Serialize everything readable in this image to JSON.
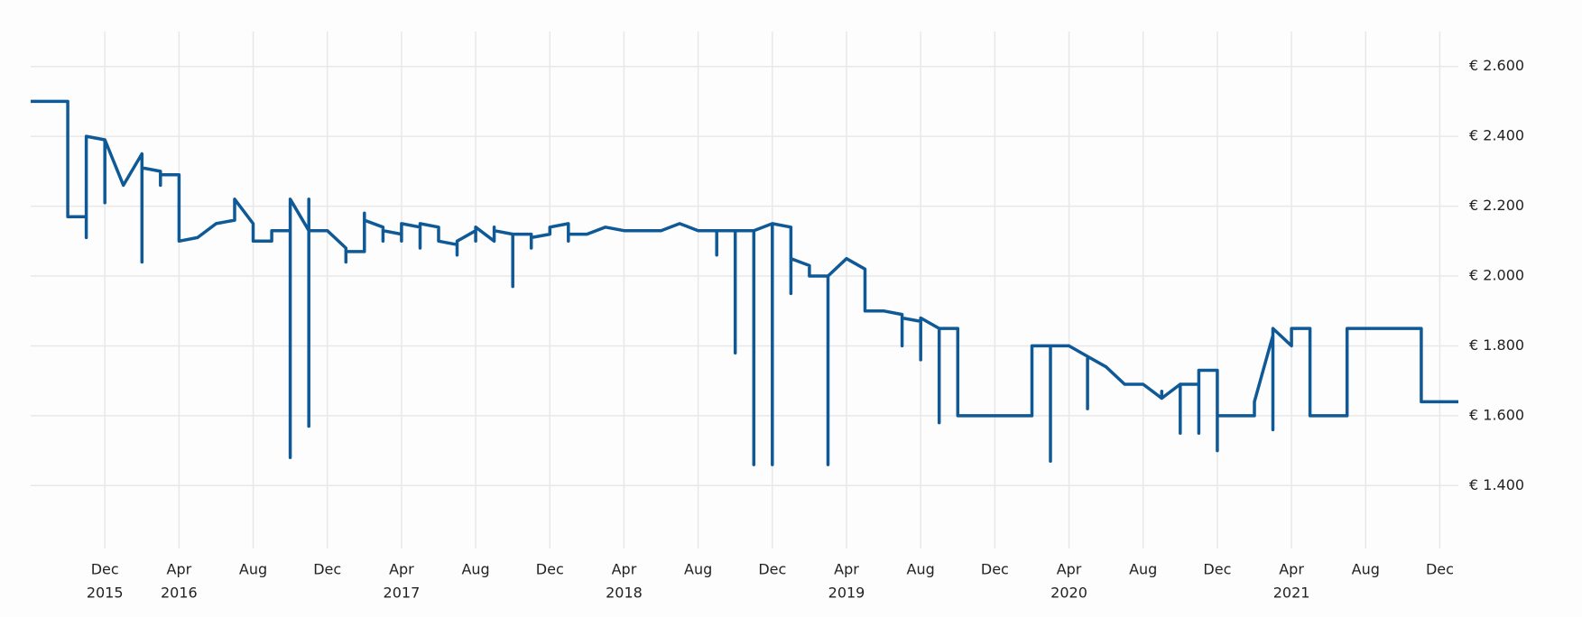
{
  "chart_data": {
    "type": "line",
    "color": "#0f5a96",
    "grid": true,
    "y_axis_side": "right",
    "x": [
      "2015-08",
      "2015-10",
      "2015-10",
      "2015-11",
      "2015-11",
      "2015-11",
      "2015-12",
      "2015-12",
      "2015-12",
      "2016-01",
      "2016-02",
      "2016-02",
      "2016-02",
      "2016-02",
      "2016-02",
      "2016-03",
      "2016-03",
      "2016-03",
      "2016-04",
      "2016-04",
      "2016-05",
      "2016-06",
      "2016-07",
      "2016-07",
      "2016-07",
      "2016-08",
      "2016-08",
      "2016-09",
      "2016-09",
      "2016-10",
      "2016-10",
      "2016-10",
      "2016-10",
      "2016-10",
      "2016-11",
      "2016-11",
      "2016-11",
      "2016-11",
      "2016-11",
      "2016-12",
      "2017-01",
      "2017-01",
      "2017-01",
      "2017-02",
      "2017-02",
      "2017-02",
      "2017-02",
      "2017-03",
      "2017-03",
      "2017-03",
      "2017-04",
      "2017-04",
      "2017-04",
      "2017-05",
      "2017-05",
      "2017-05",
      "2017-06",
      "2017-06",
      "2017-07",
      "2017-07",
      "2017-07",
      "2017-08",
      "2017-08",
      "2017-08",
      "2017-08",
      "2017-08",
      "2017-09",
      "2017-09",
      "2017-09",
      "2017-09",
      "2017-10",
      "2017-10",
      "2017-10",
      "2017-11",
      "2017-11",
      "2017-11",
      "2017-12",
      "2017-12",
      "2018-01",
      "2018-01",
      "2018-01",
      "2018-02",
      "2018-03",
      "2018-04",
      "2018-06",
      "2018-07",
      "2018-08",
      "2018-09",
      "2018-09",
      "2018-09",
      "2018-10",
      "2018-10",
      "2018-10",
      "2018-11",
      "2018-11",
      "2018-11",
      "2018-12",
      "2018-12",
      "2018-12",
      "2019-01",
      "2019-01",
      "2019-01",
      "2019-02",
      "2019-02",
      "2019-03",
      "2019-03",
      "2019-03",
      "2019-04",
      "2019-05",
      "2019-05",
      "2019-06",
      "2019-07",
      "2019-07",
      "2019-07",
      "2019-08",
      "2019-08",
      "2019-08",
      "2019-09",
      "2019-09",
      "2019-09",
      "2019-10",
      "2019-10",
      "2019-10",
      "2019-10",
      "2020-01",
      "2020-02",
      "2020-02",
      "2020-03",
      "2020-03",
      "2020-03",
      "2020-04",
      "2020-05",
      "2020-05",
      "2020-05",
      "2020-06",
      "2020-07",
      "2020-08",
      "2020-09",
      "2020-09",
      "2020-09",
      "2020-10",
      "2020-10",
      "2020-10",
      "2020-11",
      "2020-11",
      "2020-11",
      "2020-11",
      "2020-12",
      "2020-12",
      "2020-12",
      "2021-02",
      "2021-02",
      "2021-03",
      "2021-03",
      "2021-03",
      "2021-03",
      "2021-04",
      "2021-04",
      "2021-05",
      "2021-05",
      "2021-05",
      "2021-07",
      "2021-07",
      "2021-07",
      "2021-07",
      "2021-11",
      "2021-11",
      "2022-01"
    ],
    "values": [
      2500,
      2500,
      2170,
      2170,
      2110,
      2400,
      2390,
      2210,
      2390,
      2260,
      2350,
      2040,
      2320,
      2040,
      2310,
      2300,
      2260,
      2290,
      2290,
      2100,
      2110,
      2150,
      2160,
      2200,
      2220,
      2150,
      2100,
      2100,
      2130,
      2130,
      1480,
      2130,
      1480,
      2220,
      2130,
      2220,
      2130,
      1570,
      2130,
      2130,
      2080,
      2040,
      2070,
      2070,
      2180,
      2110,
      2160,
      2140,
      2100,
      2130,
      2120,
      2100,
      2150,
      2140,
      2080,
      2150,
      2140,
      2100,
      2090,
      2060,
      2100,
      2130,
      2100,
      2140,
      2100,
      2140,
      2100,
      2140,
      2100,
      2130,
      2120,
      1970,
      2120,
      2120,
      2080,
      2110,
      2120,
      2140,
      2150,
      2100,
      2120,
      2120,
      2140,
      2130,
      2130,
      2150,
      2130,
      2130,
      2060,
      2130,
      2130,
      1780,
      2130,
      2130,
      1460,
      2130,
      2150,
      1460,
      2150,
      2140,
      1950,
      2050,
      2030,
      2000,
      2000,
      1460,
      2000,
      2050,
      2020,
      1900,
      1900,
      1890,
      1800,
      1880,
      1870,
      1760,
      1880,
      1850,
      1580,
      1850,
      1850,
      1650,
      1820,
      1600,
      1600,
      1600,
      1800,
      1800,
      1470,
      1800,
      1800,
      1770,
      1620,
      1770,
      1740,
      1690,
      1690,
      1650,
      1670,
      1650,
      1690,
      1550,
      1690,
      1690,
      1550,
      1600,
      1730,
      1730,
      1500,
      1600,
      1600,
      1640,
      1830,
      1850,
      1560,
      1850,
      1800,
      1850,
      1850,
      1710,
      1600,
      1600,
      1850,
      1600,
      1850,
      1850,
      1640,
      1640
    ],
    "xlim": [
      "2015-08",
      "2022-01"
    ],
    "xticks": [
      {
        "value": "2015-12",
        "label": "Dec"
      },
      {
        "value": "2016-04",
        "label": "Apr"
      },
      {
        "value": "2016-08",
        "label": "Aug"
      },
      {
        "value": "2016-12",
        "label": "Dec"
      },
      {
        "value": "2017-04",
        "label": "Apr"
      },
      {
        "value": "2017-08",
        "label": "Aug"
      },
      {
        "value": "2017-12",
        "label": "Dec"
      },
      {
        "value": "2018-04",
        "label": "Apr"
      },
      {
        "value": "2018-08",
        "label": "Aug"
      },
      {
        "value": "2018-12",
        "label": "Dec"
      },
      {
        "value": "2019-04",
        "label": "Apr"
      },
      {
        "value": "2019-08",
        "label": "Aug"
      },
      {
        "value": "2019-12",
        "label": "Dec"
      },
      {
        "value": "2020-04",
        "label": "Apr"
      },
      {
        "value": "2020-08",
        "label": "Aug"
      },
      {
        "value": "2020-12",
        "label": "Dec"
      },
      {
        "value": "2021-04",
        "label": "Apr"
      },
      {
        "value": "2021-08",
        "label": "Aug"
      },
      {
        "value": "2021-12",
        "label": "Dec"
      }
    ],
    "xtick_years": [
      {
        "value": "2015-12",
        "label": "2015"
      },
      {
        "value": "2016-04",
        "label": "2016"
      },
      {
        "value": "2017-04",
        "label": "2017"
      },
      {
        "value": "2018-04",
        "label": "2018"
      },
      {
        "value": "2019-04",
        "label": "2019"
      },
      {
        "value": "2020-04",
        "label": "2020"
      },
      {
        "value": "2021-04",
        "label": "2021"
      }
    ],
    "ylim": [
      1220,
      2700
    ],
    "yticks": [
      {
        "value": 1400,
        "label": "€ 1.400"
      },
      {
        "value": 1600,
        "label": "€ 1.600"
      },
      {
        "value": 1800,
        "label": "€ 1.800"
      },
      {
        "value": 2000,
        "label": "€ 2.000"
      },
      {
        "value": 2200,
        "label": "€ 2.200"
      },
      {
        "value": 2400,
        "label": "€ 2.400"
      },
      {
        "value": 2600,
        "label": "€ 2.600"
      }
    ]
  }
}
